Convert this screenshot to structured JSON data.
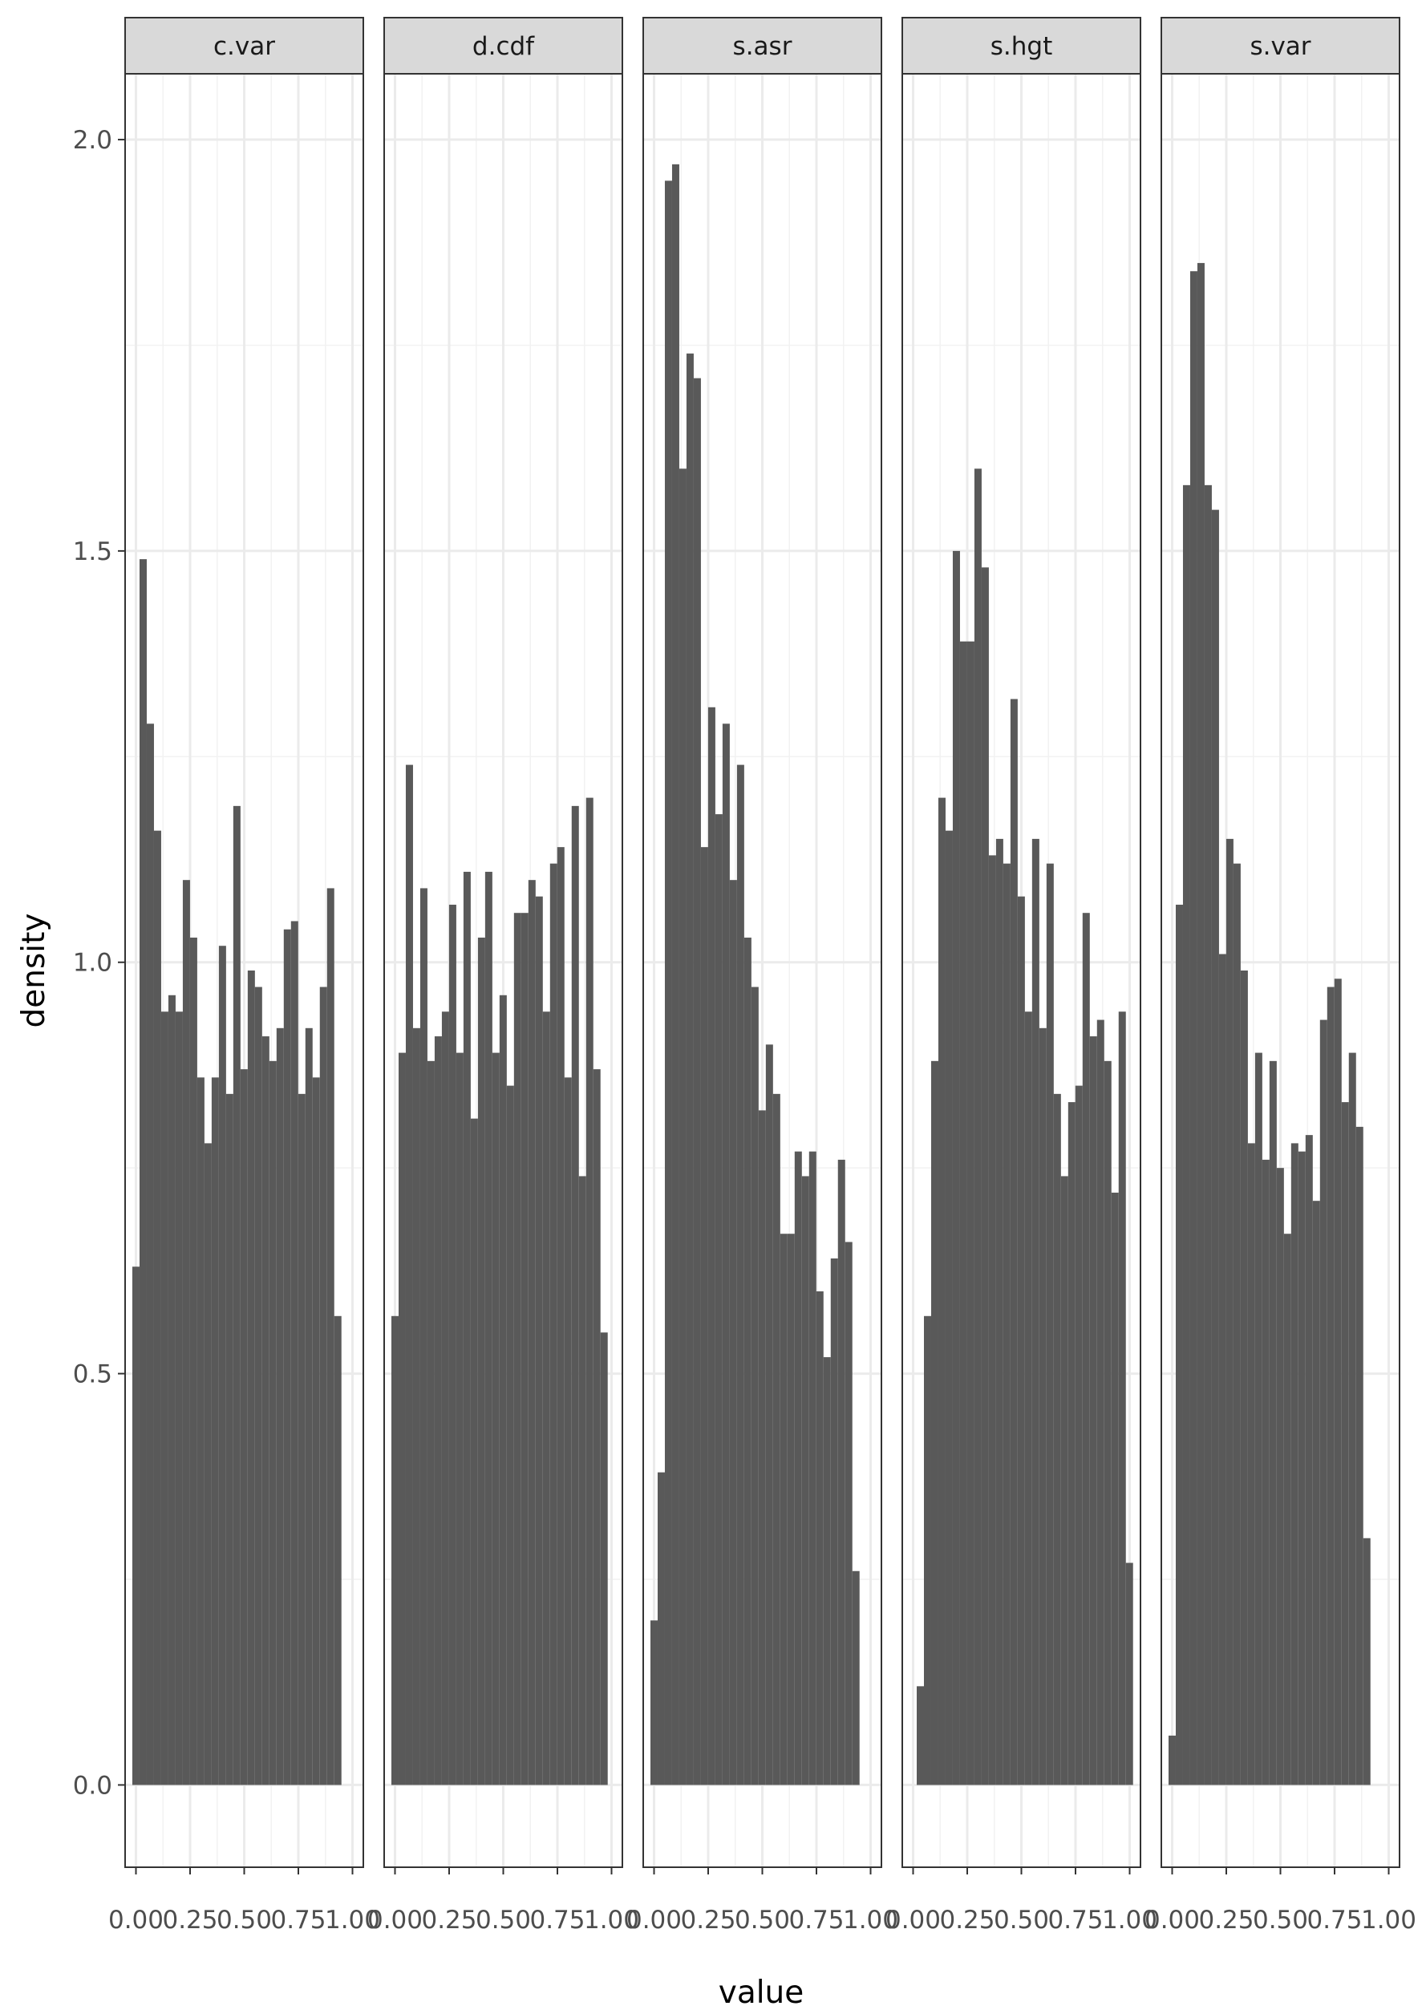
{
  "chart_data": {
    "type": "bar",
    "subtype": "faceted-histogram",
    "xlabel": "value",
    "ylabel": "density",
    "ylim": [
      -0.1,
      2.08
    ],
    "xlim": [
      -0.05,
      1.05
    ],
    "y_ticks": [
      0.0,
      0.5,
      1.0,
      1.5,
      2.0
    ],
    "y_tick_labels": [
      "0.0",
      "0.5",
      "1.0",
      "1.5",
      "2.0"
    ],
    "x_ticks": [
      0.0,
      0.25,
      0.5,
      0.75,
      1.0
    ],
    "x_tick_labels": [
      "0.00",
      "0.25",
      "0.50",
      "0.75",
      "1.00"
    ],
    "grid": true,
    "bar_color": "#595959",
    "bin_width": 0.0333,
    "facets": [
      {
        "name": "c.var",
        "bins_start": -0.0167,
        "values": [
          0.63,
          1.49,
          1.29,
          1.16,
          0.94,
          0.96,
          0.94,
          1.1,
          1.03,
          0.86,
          0.78,
          0.86,
          1.02,
          0.84,
          1.19,
          0.87,
          0.99,
          0.97,
          0.91,
          0.88,
          0.92,
          1.04,
          1.05,
          0.84,
          0.92,
          0.86,
          0.97,
          1.09,
          0.57
        ]
      },
      {
        "name": "d.cdf",
        "bins_start": -0.0167,
        "values": [
          0.57,
          0.89,
          1.24,
          0.92,
          1.09,
          0.88,
          0.91,
          0.94,
          1.07,
          0.89,
          1.11,
          0.81,
          1.03,
          1.11,
          0.89,
          0.96,
          0.85,
          1.06,
          1.06,
          1.1,
          1.08,
          0.94,
          1.12,
          1.14,
          0.86,
          1.19,
          0.74,
          1.2,
          0.87,
          0.55
        ]
      },
      {
        "name": "s.asr",
        "bins_start": -0.0167,
        "values": [
          0.2,
          0.38,
          1.95,
          1.97,
          1.6,
          1.74,
          1.71,
          1.14,
          1.31,
          1.18,
          1.29,
          1.1,
          1.24,
          1.03,
          0.97,
          0.82,
          0.9,
          0.84,
          0.67,
          0.67,
          0.77,
          0.74,
          0.77,
          0.6,
          0.52,
          0.64,
          0.76,
          0.66,
          0.26
        ]
      },
      {
        "name": "s.hgt",
        "bins_start": 0.0167,
        "values": [
          0.12,
          0.57,
          0.88,
          1.2,
          1.16,
          1.5,
          1.39,
          1.39,
          1.6,
          1.48,
          1.13,
          1.15,
          1.12,
          1.32,
          1.08,
          0.94,
          1.15,
          0.92,
          1.12,
          0.84,
          0.74,
          0.83,
          0.85,
          1.06,
          0.91,
          0.93,
          0.88,
          0.72,
          0.94,
          0.27
        ]
      },
      {
        "name": "s.var",
        "bins_start": -0.0167,
        "values": [
          0.06,
          1.07,
          1.58,
          1.84,
          1.85,
          1.58,
          1.55,
          1.01,
          1.15,
          1.12,
          0.99,
          0.78,
          0.89,
          0.76,
          0.88,
          0.75,
          0.67,
          0.78,
          0.77,
          0.79,
          0.71,
          0.93,
          0.97,
          0.98,
          0.83,
          0.89,
          0.8,
          0.3
        ]
      }
    ]
  }
}
